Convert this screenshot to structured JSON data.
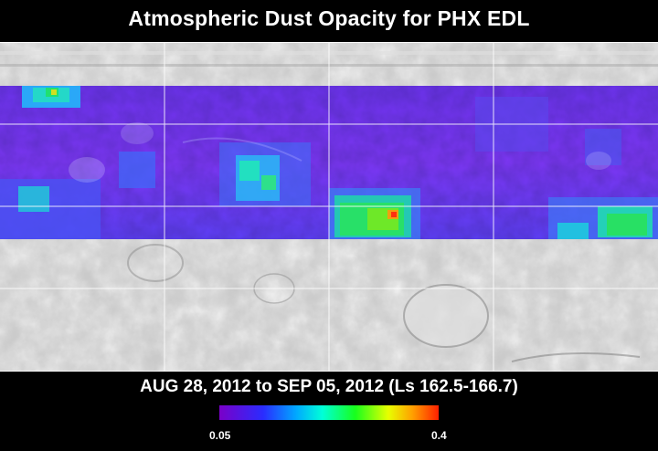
{
  "title": "Atmospheric Dust Opacity for PHX EDL",
  "date_range": "AUG 28, 2012 to SEP 05, 2012 (Ls 162.5-166.7)",
  "colorbar": {
    "min_label": "0.05",
    "max_label": "0.4",
    "colors": [
      "#7a00c8",
      "#2a2cff",
      "#00a8ff",
      "#00ffd8",
      "#18ff1c",
      "#e8ff00",
      "#ffa000",
      "#ff2000"
    ]
  },
  "map": {
    "base": "grayscale shaded-relief map of Mars",
    "overlay": "dust opacity colour band",
    "grid": true,
    "dust_hotspots": [
      {
        "region": "north-west",
        "level": "green-high"
      },
      {
        "region": "central-north",
        "level": "green"
      },
      {
        "region": "central-south",
        "level": "green-orange"
      },
      {
        "region": "east-south",
        "level": "green"
      }
    ]
  }
}
